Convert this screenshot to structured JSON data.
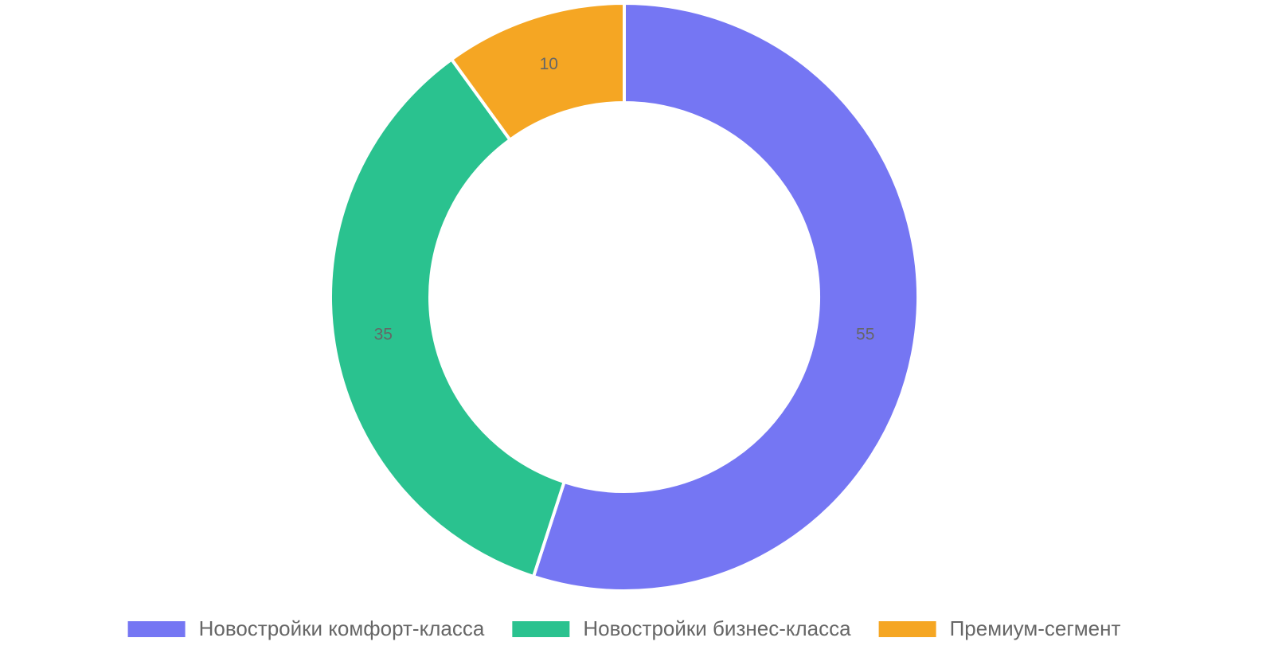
{
  "chart_data": {
    "type": "doughnut",
    "categories": [
      "Новостройки комфорт-класса",
      "Новостройки бизнес-класса",
      "Премиум-сегмент"
    ],
    "values": [
      55,
      35,
      10
    ],
    "colors": [
      "#7576f3",
      "#2ac28f",
      "#f5a623"
    ],
    "legend": "bottom"
  }
}
